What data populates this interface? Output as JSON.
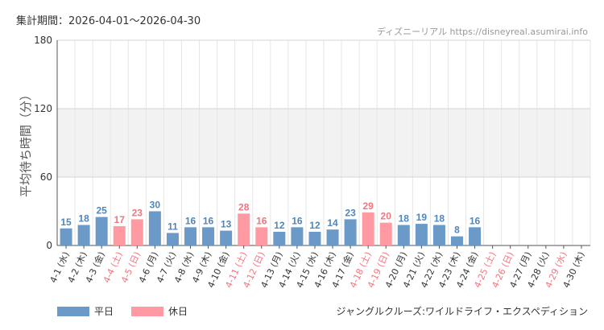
{
  "header": {
    "period": "集計期間：2026-04-01～2026-04-30",
    "source": "ディズニーリアル https://disneyreal.asumirai.info"
  },
  "subtitle": "ジャングルクルーズ:ワイルドライフ・エクスペディション",
  "legend": {
    "weekday": "平日",
    "holiday": "休日"
  },
  "colors": {
    "weekday": "#6b9ac8",
    "holiday": "#ff9aa2",
    "weekday_label": "#4f86bd",
    "holiday_label": "#f2747f",
    "band": "#f2f2f2",
    "grid": "#e6e6e6"
  },
  "chart_data": {
    "type": "bar",
    "ylabel": "平均待ち時間（分）",
    "ylim": [
      0,
      180
    ],
    "yticks": [
      0,
      60,
      120,
      180
    ],
    "categories": [
      "4-1 (水)",
      "4-2 (木)",
      "4-3 (金)",
      "4-4 (土)",
      "4-5 (日)",
      "4-6 (月)",
      "4-7 (火)",
      "4-8 (水)",
      "4-9 (木)",
      "4-10 (金)",
      "4-11 (土)",
      "4-12 (日)",
      "4-13 (月)",
      "4-14 (火)",
      "4-15 (水)",
      "4-16 (木)",
      "4-17 (金)",
      "4-18 (土)",
      "4-19 (日)",
      "4-20 (月)",
      "4-21 (火)",
      "4-22 (水)",
      "4-23 (木)",
      "4-24 (金)",
      "4-25 (土)",
      "4-26 (日)",
      "4-27 (月)",
      "4-28 (火)",
      "4-29 (水)",
      "4-30 (木)"
    ],
    "values": [
      15,
      18,
      25,
      17,
      23,
      30,
      11,
      16,
      16,
      13,
      28,
      16,
      12,
      16,
      12,
      14,
      23,
      29,
      20,
      18,
      19,
      18,
      8,
      16,
      null,
      null,
      null,
      null,
      null,
      null
    ],
    "day_type": [
      "weekday",
      "weekday",
      "weekday",
      "holiday",
      "holiday",
      "weekday",
      "weekday",
      "weekday",
      "weekday",
      "weekday",
      "holiday",
      "holiday",
      "weekday",
      "weekday",
      "weekday",
      "weekday",
      "weekday",
      "holiday",
      "holiday",
      "weekday",
      "weekday",
      "weekday",
      "weekday",
      "weekday",
      "holiday",
      "holiday",
      "weekday",
      "weekday",
      "holiday",
      "weekday"
    ]
  }
}
